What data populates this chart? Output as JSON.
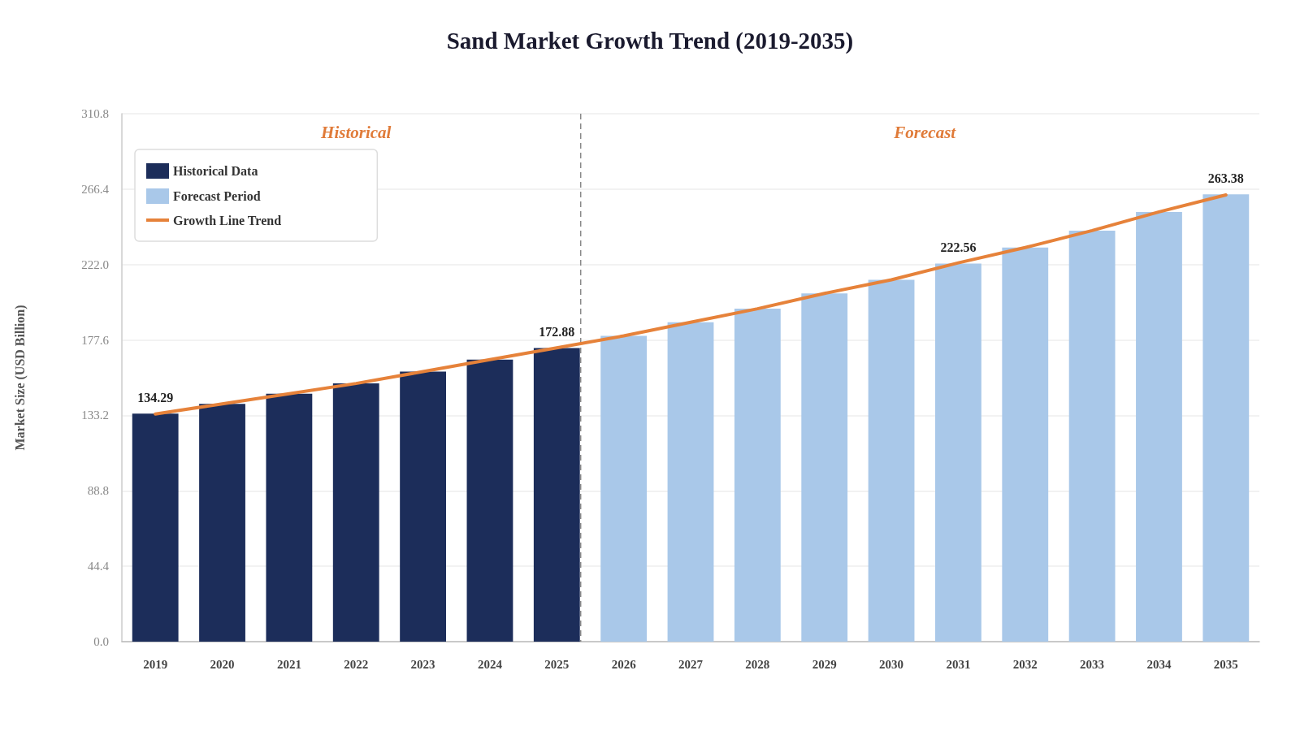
{
  "chart_data": {
    "type": "bar",
    "title": "Sand Market Growth Trend (2019-2035)",
    "ylabel": "Market Size (USD Billion)",
    "categories": [
      "2019",
      "2020",
      "2021",
      "2022",
      "2023",
      "2024",
      "2025",
      "2026",
      "2027",
      "2028",
      "2029",
      "2030",
      "2031",
      "2032",
      "2033",
      "2034",
      "2035"
    ],
    "series": [
      {
        "name": "Historical Data",
        "color": "#1c2d5a",
        "values": [
          134.29,
          140,
          146,
          152,
          159,
          166,
          172.88,
          null,
          null,
          null,
          null,
          null,
          null,
          null,
          null,
          null,
          null
        ],
        "value_labels": [
          "134.29",
          null,
          null,
          null,
          null,
          null,
          "172.88",
          null,
          null,
          null,
          null,
          null,
          null,
          null,
          null,
          null,
          null
        ]
      },
      {
        "name": "Forecast Period",
        "color": "#a9c8e9",
        "values": [
          null,
          null,
          null,
          null,
          null,
          null,
          null,
          180,
          188,
          196,
          205,
          213,
          222.56,
          232,
          242,
          253,
          263.38
        ],
        "value_labels": [
          null,
          null,
          null,
          null,
          null,
          null,
          null,
          null,
          null,
          null,
          null,
          null,
          "222.56",
          null,
          null,
          null,
          "263.38"
        ]
      },
      {
        "name": "Growth Line Trend",
        "type": "line",
        "color": "#e6823a",
        "values": [
          134,
          140,
          146,
          152,
          159,
          166,
          173,
          180,
          188,
          196,
          205,
          213,
          223,
          232,
          242,
          253,
          263
        ]
      }
    ],
    "ylim": [
      0,
      310.8
    ],
    "yticks": [
      {
        "value": 0,
        "label": "0.0"
      },
      44.4,
      88.8,
      133.2,
      177.6,
      {
        "value": 222,
        "label": "222.0"
      },
      266.4,
      310.8
    ],
    "grid": "y",
    "legend": "top left",
    "marker": "none",
    "line_style": "solid",
    "annotations": [
      "Historical",
      "Forecast"
    ],
    "ref_lines": [
      {
        "axis": "x",
        "value": "2025",
        "color": "#888888",
        "line_style": "dashed"
      }
    ]
  }
}
